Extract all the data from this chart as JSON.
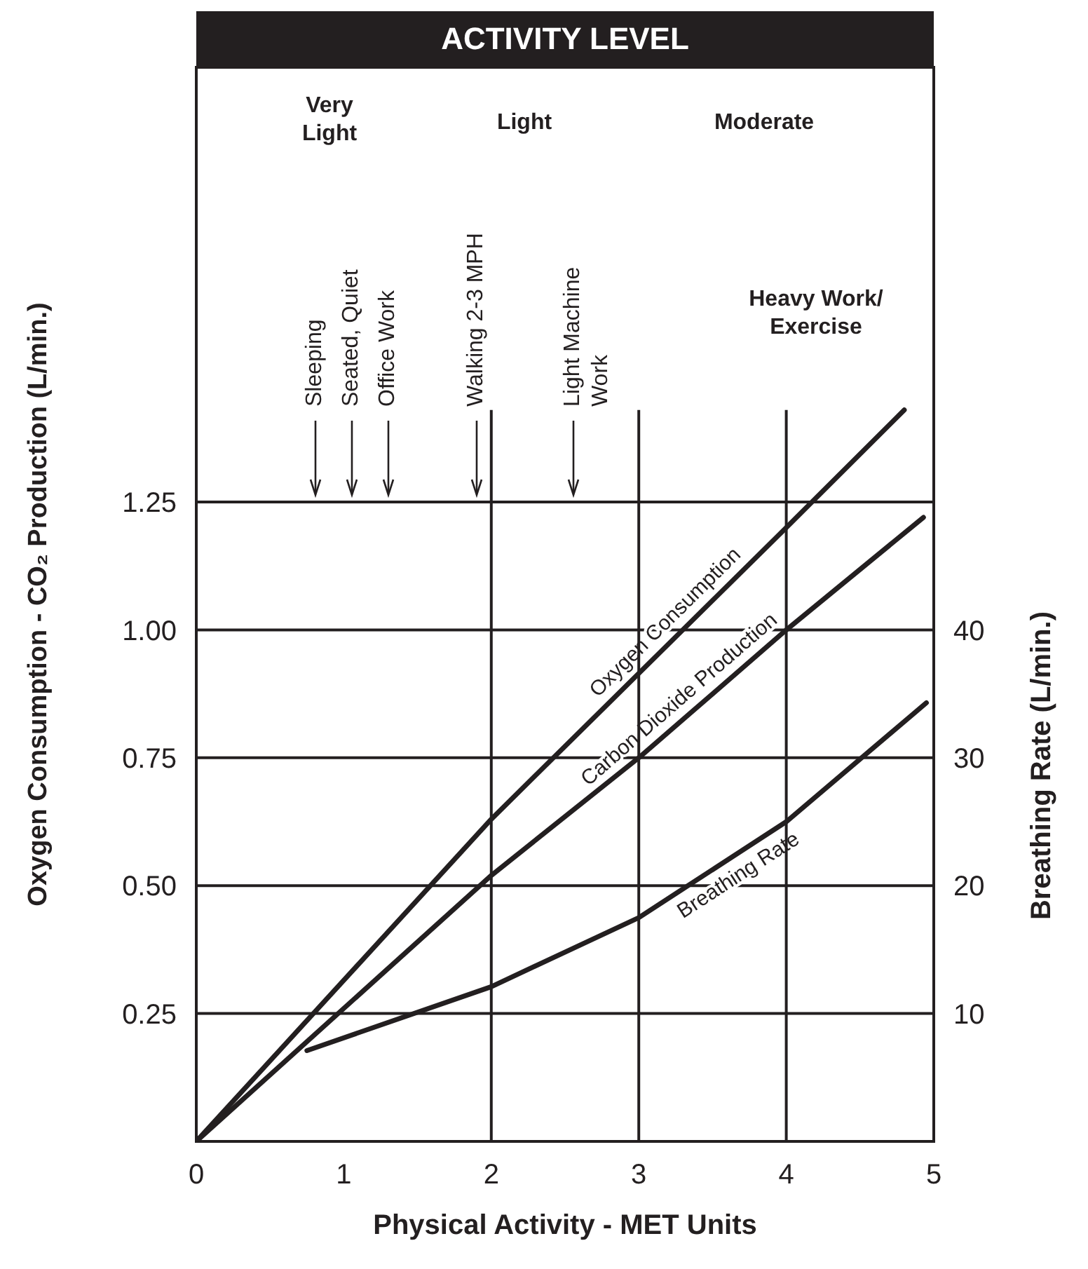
{
  "chart_data": {
    "type": "line",
    "title": "ACTIVITY LEVEL",
    "xlabel": "Physical Activity - MET Units",
    "ylabel": "Oxygen Consumption - CO₂ Production (L/min.)",
    "y2label": "Breathing Rate (L/min.)",
    "xlim": [
      0,
      5
    ],
    "xticks": [
      0,
      1,
      2,
      3,
      4,
      5
    ],
    "ylim": [
      0,
      2.1
    ],
    "yticks": [
      0.25,
      {
        "value": 0.5,
        "label": "0.50"
      },
      0.75,
      {
        "value": 1,
        "label": "1.00"
      },
      1.25
    ],
    "y2lim": [
      0,
      84
    ],
    "y2ticks": [
      10,
      20,
      30,
      40
    ],
    "grid": "y",
    "legend": false,
    "marker": "none",
    "line_style": "solid",
    "series": [
      {
        "name": "Oxygen Consumption",
        "color": "#231f20",
        "x": [
          0,
          2,
          4,
          4.8
        ],
        "values": [
          0,
          0.63,
          1.2,
          1.43
        ]
      },
      {
        "name": "Carbon Dioxide Production",
        "color": "#231f20",
        "x": [
          0,
          2,
          3,
          4,
          4.93
        ],
        "values": [
          0,
          0.52,
          0.75,
          1.0,
          1.22
        ]
      },
      {
        "name": "Breathing Rate",
        "color": "#231f20",
        "axis": "y2",
        "x": [
          0.75,
          2,
          3,
          4,
          4.95
        ],
        "values": [
          7.1,
          12.1,
          17.5,
          25,
          34.3
        ]
      }
    ],
    "ref_lines": [
      {
        "axis": "x",
        "value": 2
      },
      {
        "axis": "x",
        "value": 3
      },
      {
        "axis": "x",
        "value": 4
      }
    ],
    "annotations": [
      "Very\nLight",
      "Light",
      "Moderate",
      "Heavy Work/\nExercise",
      "Sleeping",
      "Seated, Quiet",
      "Office Work",
      "Walking 2-3 MPH",
      "Light Machine\nWork"
    ]
  }
}
